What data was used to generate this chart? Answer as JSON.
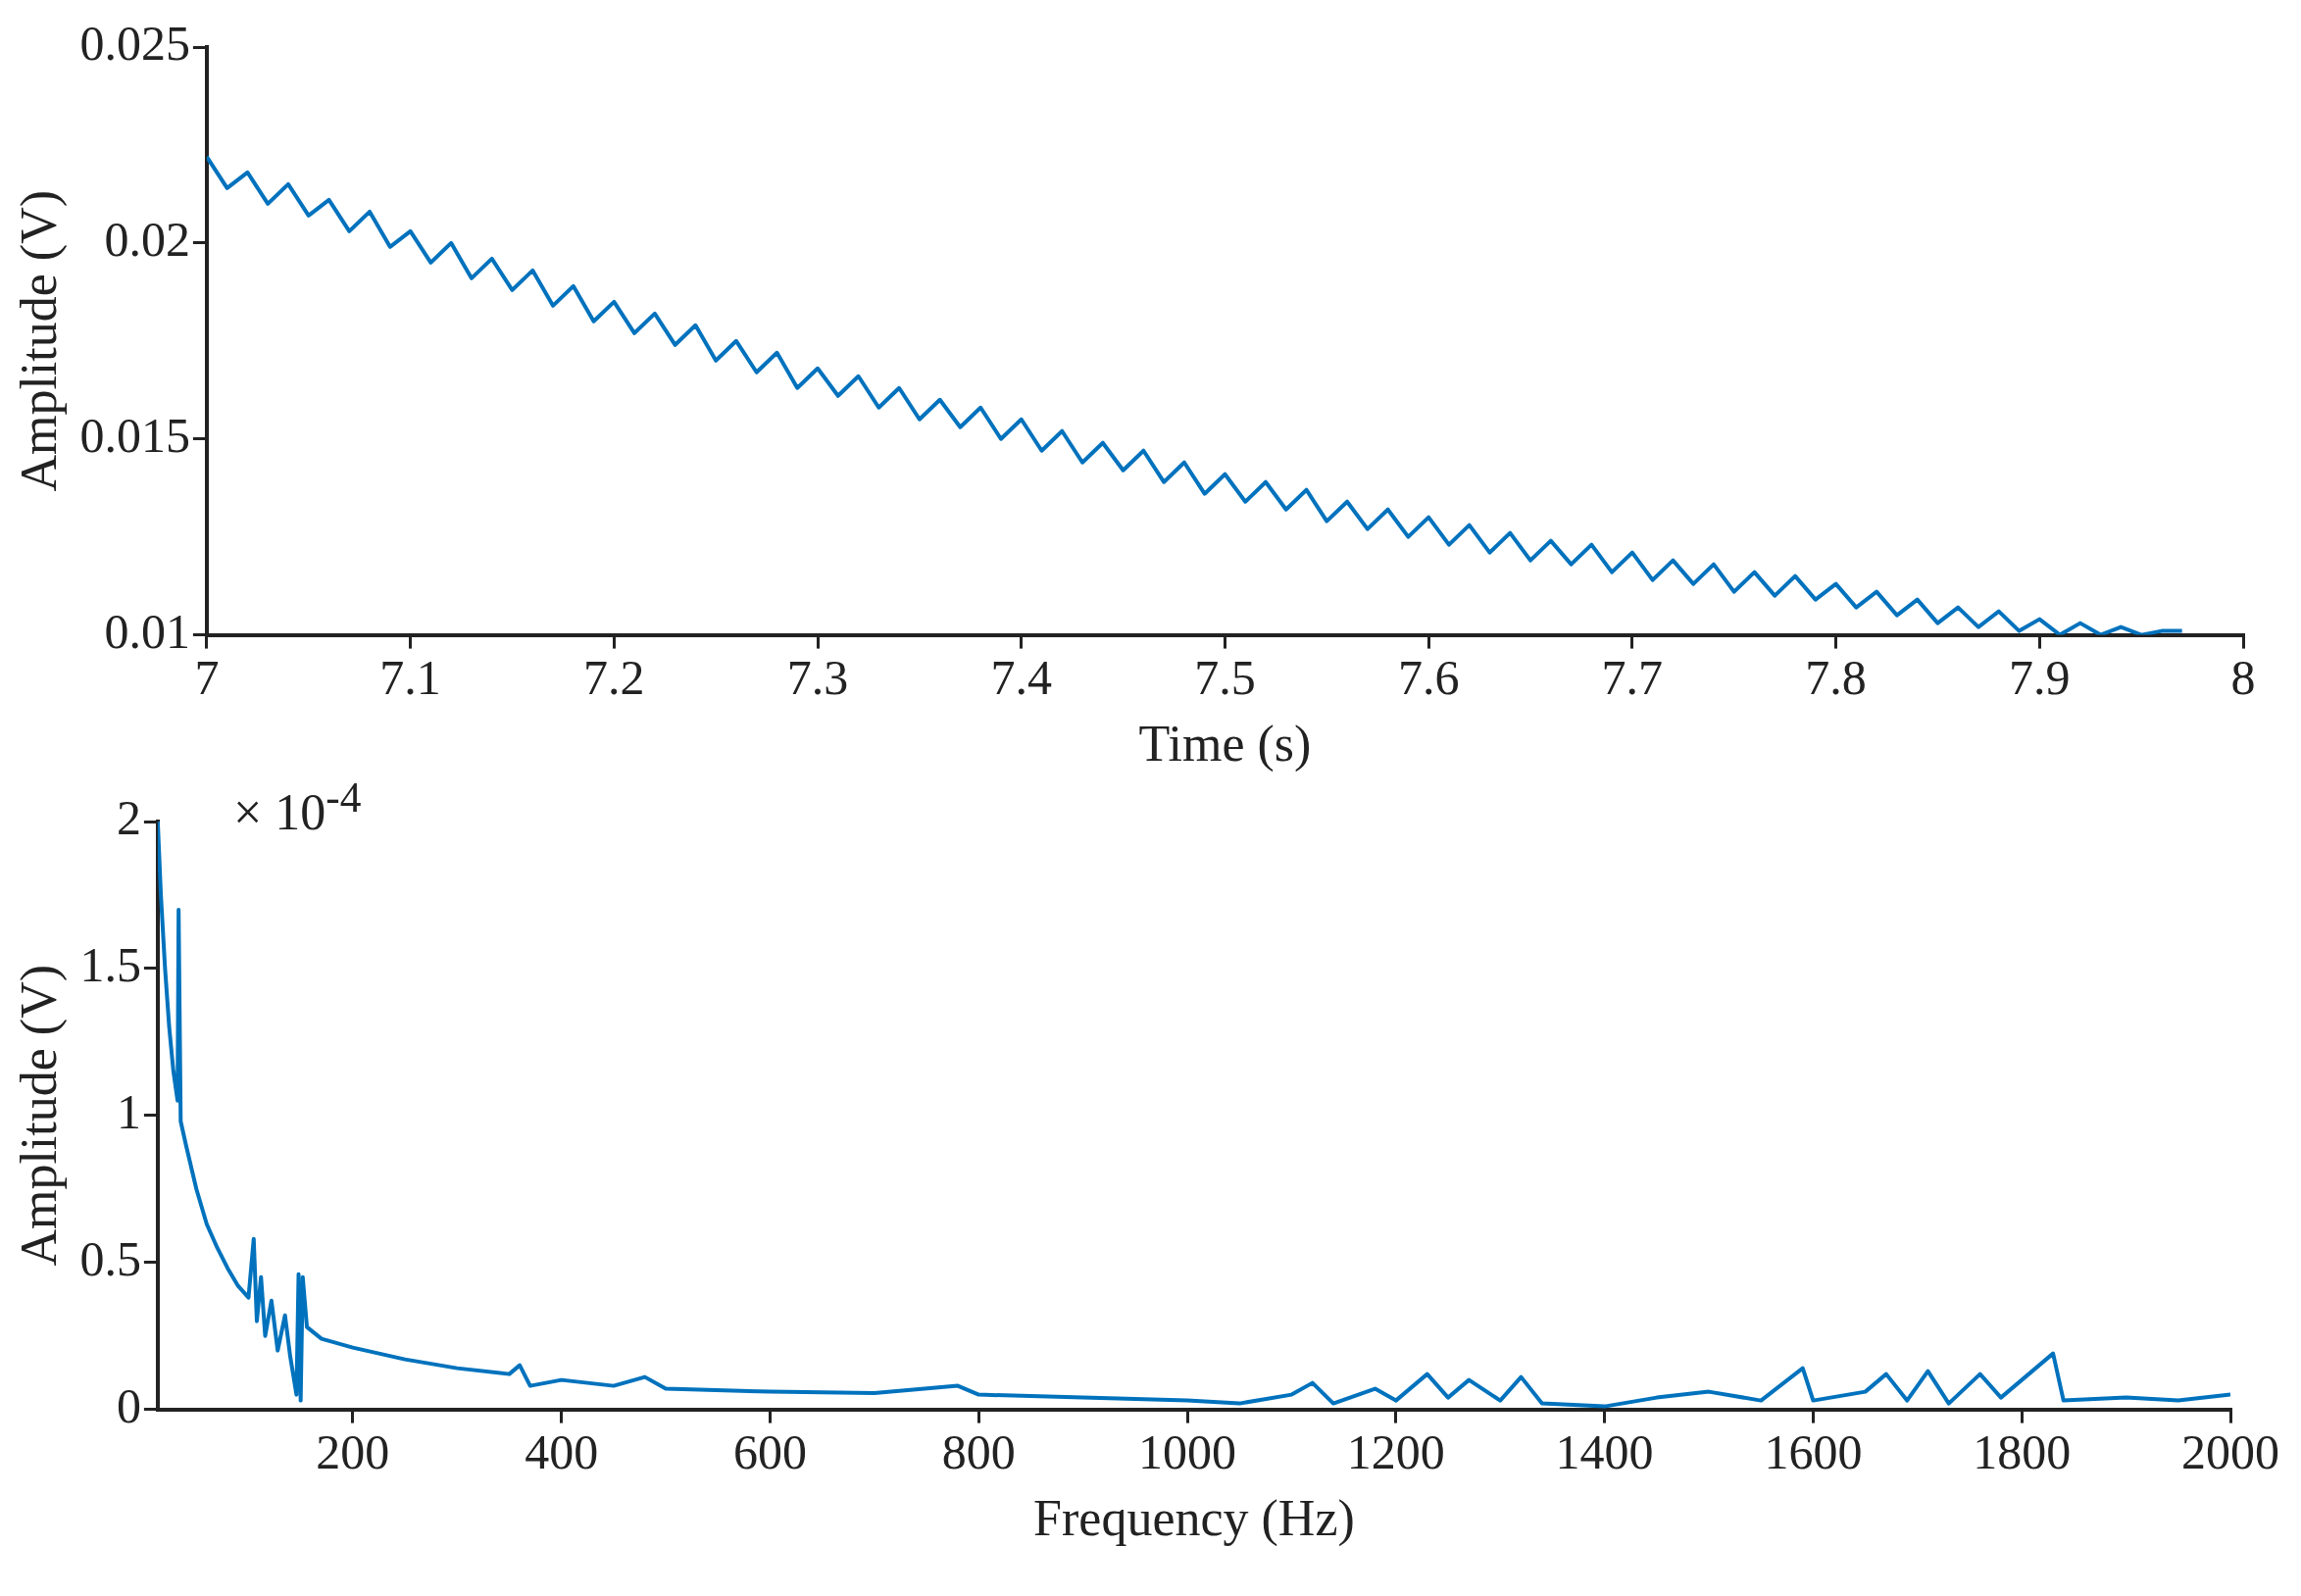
{
  "chart_data": [
    {
      "type": "line",
      "xlabel": "Time (s)",
      "ylabel": "Amplitude (V)",
      "xlim": [
        7,
        8
      ],
      "xticks": [
        7,
        7.1,
        7.2,
        7.3,
        7.4,
        7.5,
        7.6,
        7.7,
        7.8,
        7.9,
        8
      ],
      "ylim": [
        0.01,
        0.025
      ],
      "yticks": [
        0.01,
        0.015,
        0.02,
        0.025
      ],
      "grid": false,
      "legend": false,
      "marker": "none",
      "line_style": "solid",
      "x": [
        7.0,
        7.01,
        7.02,
        7.03,
        7.04,
        7.05,
        7.06,
        7.07,
        7.08,
        7.09,
        7.1,
        7.11,
        7.12,
        7.13,
        7.14,
        7.15,
        7.16,
        7.17,
        7.18,
        7.19,
        7.2,
        7.21,
        7.22,
        7.23,
        7.24,
        7.25,
        7.26,
        7.27,
        7.28,
        7.29,
        7.3,
        7.31,
        7.32,
        7.33,
        7.34,
        7.35,
        7.36,
        7.37,
        7.38,
        7.39,
        7.4,
        7.41,
        7.42,
        7.43,
        7.44,
        7.45,
        7.46,
        7.47,
        7.48,
        7.49,
        7.5,
        7.51,
        7.52,
        7.53,
        7.54,
        7.55,
        7.56,
        7.57,
        7.58,
        7.59,
        7.6,
        7.61,
        7.62,
        7.63,
        7.64,
        7.65,
        7.66,
        7.67,
        7.68,
        7.69,
        7.7,
        7.71,
        7.72,
        7.73,
        7.74,
        7.75,
        7.76,
        7.77,
        7.78,
        7.79,
        7.8,
        7.81,
        7.82,
        7.83,
        7.84,
        7.85,
        7.86,
        7.87,
        7.88,
        7.89,
        7.9,
        7.91,
        7.92,
        7.93,
        7.94,
        7.95,
        7.96,
        7.97
      ],
      "series": [
        {
          "color": "#0072bd",
          "values": [
            0.0222,
            0.0214,
            0.0218,
            0.021,
            0.0215,
            0.0207,
            0.0211,
            0.0203,
            0.0208,
            0.0199,
            0.0203,
            0.0195,
            0.02,
            0.0191,
            0.0196,
            0.0188,
            0.0193,
            0.0184,
            0.0189,
            0.018,
            0.0185,
            0.0177,
            0.0182,
            0.0174,
            0.0179,
            0.017,
            0.0175,
            0.0167,
            0.0172,
            0.0163,
            0.0168,
            0.0161,
            0.0166,
            0.0158,
            0.0163,
            0.0155,
            0.016,
            0.0153,
            0.0158,
            0.015,
            0.0155,
            0.0147,
            0.0152,
            0.0144,
            0.0149,
            0.0142,
            0.0147,
            0.0139,
            0.0144,
            0.0136,
            0.0141,
            0.0134,
            0.0139,
            0.0132,
            0.0137,
            0.0129,
            0.0134,
            0.0127,
            0.0132,
            0.0125,
            0.013,
            0.0123,
            0.0128,
            0.0121,
            0.0126,
            0.0119,
            0.0124,
            0.0118,
            0.0123,
            0.0116,
            0.0121,
            0.0114,
            0.0119,
            0.0113,
            0.0118,
            0.0111,
            0.0116,
            0.011,
            0.0115,
            0.0109,
            0.0113,
            0.0107,
            0.0111,
            0.0105,
            0.0109,
            0.0103,
            0.0107,
            0.0102,
            0.0106,
            0.0101,
            0.0104,
            0.01,
            0.0103,
            0.01,
            0.0102,
            0.01,
            0.0101,
            0.0101
          ]
        }
      ]
    },
    {
      "type": "line",
      "xlabel": "Frequency (Hz)",
      "ylabel": "Amplitude (V)",
      "annotations": [
        "× 10$^{-4}$"
      ],
      "xlim": [
        13,
        2000
      ],
      "xticks": [
        200,
        400,
        600,
        800,
        1000,
        1200,
        1400,
        1600,
        1800,
        2000
      ],
      "ylim": [
        0,
        2
      ],
      "yticks": [
        0,
        0.5,
        1,
        1.5,
        2
      ],
      "grid": false,
      "legend": false,
      "marker": "none",
      "line_style": "solid",
      "x": [
        13,
        16,
        20,
        24,
        28,
        32,
        33,
        35,
        40,
        50,
        60,
        70,
        80,
        90,
        100,
        105,
        108,
        112,
        116,
        122,
        128,
        135,
        140,
        146,
        148,
        150,
        152,
        156,
        170,
        200,
        250,
        300,
        350,
        360,
        370,
        400,
        450,
        480,
        500,
        600,
        700,
        780,
        800,
        900,
        1000,
        1050,
        1100,
        1120,
        1140,
        1180,
        1200,
        1230,
        1250,
        1270,
        1300,
        1320,
        1340,
        1400,
        1450,
        1500,
        1550,
        1590,
        1600,
        1650,
        1670,
        1690,
        1710,
        1730,
        1760,
        1780,
        1830,
        1840,
        1900,
        1950,
        2000
      ],
      "series": [
        {
          "color": "#0072bd",
          "values": [
            2.0,
            1.75,
            1.5,
            1.3,
            1.15,
            1.05,
            1.7,
            0.98,
            0.9,
            0.75,
            0.63,
            0.55,
            0.48,
            0.42,
            0.38,
            0.58,
            0.3,
            0.45,
            0.25,
            0.37,
            0.2,
            0.32,
            0.18,
            0.05,
            0.46,
            0.03,
            0.45,
            0.28,
            0.24,
            0.21,
            0.17,
            0.14,
            0.12,
            0.15,
            0.08,
            0.1,
            0.08,
            0.11,
            0.07,
            0.06,
            0.055,
            0.08,
            0.05,
            0.04,
            0.03,
            0.02,
            0.05,
            0.09,
            0.02,
            0.07,
            0.03,
            0.12,
            0.04,
            0.1,
            0.03,
            0.11,
            0.02,
            0.01,
            0.04,
            0.06,
            0.03,
            0.14,
            0.03,
            0.06,
            0.12,
            0.03,
            0.13,
            0.02,
            0.12,
            0.04,
            0.19,
            0.03,
            0.04,
            0.03,
            0.05
          ]
        }
      ]
    }
  ]
}
